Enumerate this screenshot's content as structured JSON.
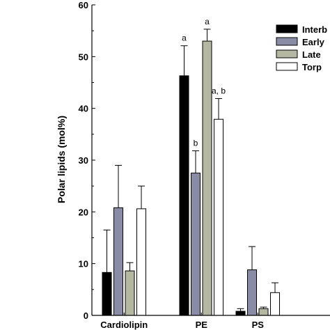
{
  "chart_data": {
    "type": "bar",
    "ylabel": "Polar lipids (mol%)",
    "ylim": [
      0,
      60
    ],
    "yticks": [
      0,
      10,
      20,
      30,
      40,
      50,
      60
    ],
    "categories": [
      "Cardiolipin",
      "PE",
      "PS"
    ],
    "series": [
      {
        "name": "Interb",
        "color": "#000000",
        "values": [
          8.3,
          46.3,
          0.8
        ],
        "errors": [
          8.2,
          5.8,
          0.5
        ]
      },
      {
        "name": "Early",
        "color": "#8a8ca6",
        "values": [
          20.8,
          27.5,
          8.8
        ],
        "errors": [
          8.2,
          4.3,
          4.5
        ]
      },
      {
        "name": "Late",
        "color": "#b4b8a2",
        "values": [
          8.6,
          53.0,
          1.3
        ],
        "errors": [
          1.6,
          2.3,
          0.3
        ]
      },
      {
        "name": "Torp",
        "color": "#ffffff",
        "values": [
          20.6,
          37.9,
          4.4
        ],
        "errors": [
          4.4,
          4.0,
          1.9
        ]
      }
    ],
    "annotations": [
      {
        "category": 1,
        "series": 0,
        "text": "a"
      },
      {
        "category": 1,
        "series": 1,
        "text": "b"
      },
      {
        "category": 1,
        "series": 2,
        "text": "a"
      },
      {
        "category": 1,
        "series": 3,
        "text": "a, b"
      }
    ],
    "legend_position": "top-right",
    "grid": false
  }
}
